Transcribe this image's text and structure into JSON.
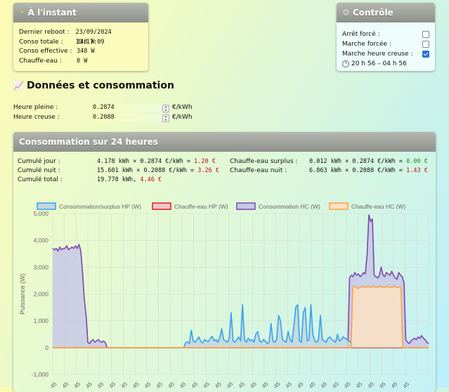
{
  "instant": {
    "title": "À l'instant",
    "rows": [
      {
        "label": "Dernier reboot :",
        "value": "23/09/2024 13:17:09"
      },
      {
        "label": "Conso totale :",
        "value": "348 W"
      },
      {
        "label": "Conso effective :",
        "value": "348 W"
      },
      {
        "label": "Chauffe-eau :",
        "value": "0 W"
      }
    ]
  },
  "controle": {
    "title": "Contrôle",
    "items": [
      {
        "label": "Arrêt forcé :",
        "checked": false
      },
      {
        "label": "Marche forcée :",
        "checked": false
      },
      {
        "label": "Marche heure creuse :",
        "checked": true
      }
    ],
    "schedule": "20 h 56 – 04 h 56"
  },
  "donnees": {
    "title": "Données et consommation",
    "heure_pleine_label": "Heure pleine :",
    "heure_pleine_value": "0.2874",
    "heure_creuse_label": "Heure creuse :",
    "heure_creuse_value": "0.2088",
    "unit": "€/kWh"
  },
  "conso": {
    "title": "Consommation sur 24 heures",
    "jour_label": "Cumulé jour :",
    "jour_calc": "4.178 kWh × 0.2874 €/kWh = ",
    "jour_cost": "1.20 €",
    "nuit_label": "Cumulé nuit :",
    "nuit_calc": "15.601 kWh × 0.2088 €/kWh = ",
    "nuit_cost": "3.26 €",
    "total_label": "Cumulé total :",
    "total_kwh": "19.778 kWh, ",
    "total_cost": "4.46 €",
    "surplus_label": "Chauffe-eau surplus :",
    "surplus_calc": "0.012 kWh × 0.2874 €/kWh = ",
    "surplus_cost": "0.00 €",
    "ce_nuit_label": "Chauffe-eau nuit :",
    "ce_nuit_calc": "6.863 kWh × 0.2088 €/kWh = ",
    "ce_nuit_cost": "1.43 €"
  },
  "chart_data": {
    "type": "line",
    "ylabel": "Puissance (W)",
    "ylim": [
      -1000,
      5000
    ],
    "yticks": [
      "-1,000",
      "0",
      "1,000",
      "2,000",
      "3,000",
      "4,000",
      "5,000"
    ],
    "xtick_label": "45",
    "grid": true,
    "legend_position": "top",
    "series": [
      {
        "name": "Consommation/surplus HP (W)",
        "color": "#36a2eb",
        "fill": "#c2d7e0",
        "values": [
          0,
          0,
          0,
          0,
          0,
          0,
          0,
          0,
          0,
          0,
          0,
          0,
          0,
          0,
          0,
          0,
          0,
          0,
          0,
          0,
          0,
          0,
          0,
          0,
          0,
          0,
          0,
          0,
          0,
          0,
          0,
          0,
          0,
          0,
          0,
          0,
          0,
          0,
          0,
          0,
          0,
          0,
          0,
          0,
          0,
          0,
          0,
          0,
          0,
          0,
          0,
          0,
          0,
          0,
          0,
          0,
          0,
          0,
          0,
          0,
          0,
          0,
          0,
          0,
          0,
          0,
          0,
          0,
          0,
          0,
          180,
          220,
          150,
          650,
          250,
          200,
          300,
          400,
          220,
          180,
          300,
          250,
          220,
          350,
          420,
          250,
          300,
          200,
          380,
          700,
          300,
          250,
          200,
          350,
          1300,
          250,
          200,
          300,
          400,
          250,
          1600,
          300,
          200,
          350,
          250,
          300,
          200,
          500,
          600,
          250,
          200,
          300,
          250,
          150,
          200,
          900,
          250,
          200,
          300,
          1200,
          1000,
          300,
          250,
          200,
          600,
          300,
          200,
          800,
          1500,
          1600,
          250,
          200,
          1300,
          1500,
          250,
          300,
          1600,
          500,
          250,
          200,
          300,
          1200,
          300,
          250,
          200,
          350,
          400,
          300,
          250,
          200,
          500,
          250,
          300,
          400,
          350,
          300,
          250,
          200,
          150,
          0,
          0,
          0,
          0,
          0,
          0,
          0,
          0,
          0,
          0,
          0,
          0,
          0,
          0,
          0,
          0,
          0,
          0,
          0,
          0,
          0,
          0,
          0,
          0,
          0,
          0,
          0,
          0,
          0,
          0,
          0,
          0,
          0,
          0,
          0,
          0,
          0,
          0,
          0,
          0
        ]
      },
      {
        "name": "Chauffe-eau HP (W)",
        "color": "#d31f2a",
        "fill": "#f5c4c6",
        "values": [
          0,
          0,
          0,
          0,
          0,
          0,
          0,
          0,
          0,
          0,
          0,
          0,
          0,
          0,
          0,
          0,
          0,
          0,
          0,
          0,
          0,
          0,
          0,
          0,
          0,
          0,
          0,
          0,
          0,
          0,
          0,
          0,
          0,
          0,
          0,
          0,
          0,
          0,
          0,
          0,
          0,
          0,
          0,
          0,
          0,
          0,
          0,
          0,
          0,
          0,
          0,
          0,
          0,
          0,
          0,
          0,
          0,
          0,
          0,
          0,
          0,
          0,
          0,
          0,
          0,
          0,
          0,
          0,
          0,
          0,
          0,
          0,
          0,
          0,
          0,
          0,
          0,
          0,
          0,
          0,
          0,
          0,
          0,
          0,
          0,
          0,
          0,
          0,
          0,
          0,
          0,
          0,
          0,
          0,
          0,
          0,
          0,
          0,
          0,
          0,
          0,
          0,
          0,
          0,
          0,
          0,
          0,
          0,
          0,
          0,
          0,
          0,
          0,
          0,
          0,
          0,
          0,
          0,
          0,
          0,
          0,
          0,
          0,
          0,
          0,
          0,
          0,
          0,
          0,
          0,
          0,
          0,
          0,
          0,
          0,
          0,
          0,
          0,
          0,
          0,
          0,
          0,
          0,
          0,
          0,
          0,
          0,
          0,
          0,
          0,
          0,
          0,
          0,
          0,
          0,
          0,
          0,
          0,
          0,
          0,
          0,
          0,
          0,
          0,
          0,
          0,
          0,
          0,
          0,
          0,
          0,
          0,
          0,
          0,
          0,
          0,
          0,
          0,
          0,
          0,
          0,
          0,
          0,
          0,
          0,
          0,
          0,
          0,
          0,
          0,
          0,
          0,
          0,
          0,
          0,
          0,
          0,
          0,
          0,
          0,
          0,
          0,
          0,
          0,
          0,
          0,
          0,
          0,
          0,
          0,
          0,
          0,
          0,
          0,
          0,
          0,
          0,
          0,
          0,
          0,
          0,
          0,
          0,
          0,
          0,
          0,
          0,
          0,
          0,
          0,
          0,
          0,
          0,
          0
        ]
      },
      {
        "name": "Consommation HC (W)",
        "color": "#7d46ad",
        "fill": "#c7c8e6",
        "values": [
          3700,
          3650,
          3700,
          3600,
          3750,
          3650,
          3700,
          3700,
          3800,
          3650,
          3700,
          3750,
          3700,
          3800,
          3700,
          3850,
          3600,
          2800,
          1800,
          1200,
          200,
          150,
          250,
          300,
          200,
          250,
          300,
          220,
          200,
          250,
          180,
          0,
          0,
          0,
          0,
          0,
          0,
          0,
          0,
          0,
          0,
          0,
          0,
          0,
          0,
          0,
          0,
          0,
          0,
          0,
          0,
          0,
          0,
          0,
          0,
          0,
          0,
          0,
          0,
          0,
          0,
          0,
          0,
          0,
          0,
          0,
          0,
          0,
          0,
          0,
          0,
          0,
          0,
          0,
          0,
          0,
          0,
          0,
          0,
          0,
          0,
          0,
          0,
          0,
          0,
          0,
          0,
          0,
          0,
          0,
          0,
          0,
          0,
          0,
          0,
          0,
          0,
          0,
          0,
          0,
          0,
          0,
          0,
          0,
          0,
          0,
          0,
          0,
          0,
          0,
          0,
          0,
          0,
          0,
          0,
          0,
          0,
          0,
          0,
          0,
          0,
          0,
          0,
          0,
          0,
          0,
          0,
          0,
          0,
          0,
          0,
          0,
          0,
          0,
          0,
          0,
          0,
          0,
          0,
          0,
          0,
          0,
          0,
          0,
          0,
          0,
          0,
          0,
          0,
          0,
          0,
          0,
          0,
          0,
          0,
          0,
          0,
          0,
          0,
          0,
          0,
          0,
          0,
          0,
          0,
          0,
          0,
          0,
          0,
          2600,
          2700,
          2650,
          2800,
          2700,
          2750,
          2650,
          2700,
          2800,
          2750,
          3500,
          4950,
          4700,
          4800,
          2700,
          2650,
          2600,
          2700,
          3000,
          2700,
          2650,
          2800,
          2750,
          2700,
          2850,
          2700,
          2600,
          2550,
          2800,
          2700,
          2650,
          2400,
          300,
          200,
          150,
          250,
          300,
          350,
          300,
          400,
          350,
          450,
          350,
          300,
          200,
          150
        ]
      },
      {
        "name": "Chauffe-eau HC (W)",
        "color": "#ff9f40",
        "fill": "#fde2c2",
        "values": [
          0,
          0,
          0,
          0,
          0,
          0,
          0,
          0,
          0,
          0,
          0,
          0,
          0,
          0,
          0,
          0,
          0,
          0,
          0,
          0,
          0,
          0,
          0,
          0,
          0,
          0,
          0,
          0,
          0,
          0,
          0,
          0,
          0,
          0,
          0,
          0,
          0,
          0,
          0,
          0,
          0,
          0,
          0,
          0,
          0,
          0,
          0,
          0,
          0,
          0,
          0,
          0,
          0,
          0,
          0,
          0,
          0,
          0,
          0,
          0,
          0,
          0,
          0,
          0,
          0,
          0,
          0,
          0,
          0,
          0,
          0,
          0,
          0,
          0,
          0,
          0,
          0,
          0,
          0,
          0,
          0,
          0,
          0,
          0,
          0,
          0,
          0,
          0,
          0,
          0,
          0,
          0,
          0,
          0,
          0,
          0,
          0,
          0,
          0,
          0,
          0,
          0,
          0,
          0,
          0,
          0,
          0,
          0,
          0,
          0,
          0,
          0,
          0,
          0,
          0,
          0,
          0,
          0,
          0,
          0,
          0,
          0,
          0,
          0,
          0,
          0,
          0,
          0,
          0,
          0,
          0,
          0,
          0,
          0,
          0,
          0,
          0,
          0,
          0,
          0,
          0,
          0,
          0,
          0,
          0,
          0,
          0,
          0,
          0,
          0,
          0,
          0,
          0,
          0,
          0,
          0,
          0,
          0,
          0,
          0,
          0,
          0,
          0,
          0,
          0,
          0,
          0,
          0,
          0,
          0,
          0,
          0,
          0,
          0,
          2250,
          2300,
          2250,
          2200,
          2250,
          2250,
          2300,
          2250,
          2250,
          2300,
          2250,
          2250,
          2300,
          2250,
          2250,
          2250,
          2300,
          2250,
          2250,
          2250,
          2300,
          2250,
          2250,
          2250,
          2300,
          2250,
          2250,
          2250,
          2250,
          0,
          0,
          0,
          0,
          0,
          0,
          0,
          0,
          0,
          0,
          0,
          0,
          0,
          0,
          0,
          0
        ]
      }
    ]
  }
}
